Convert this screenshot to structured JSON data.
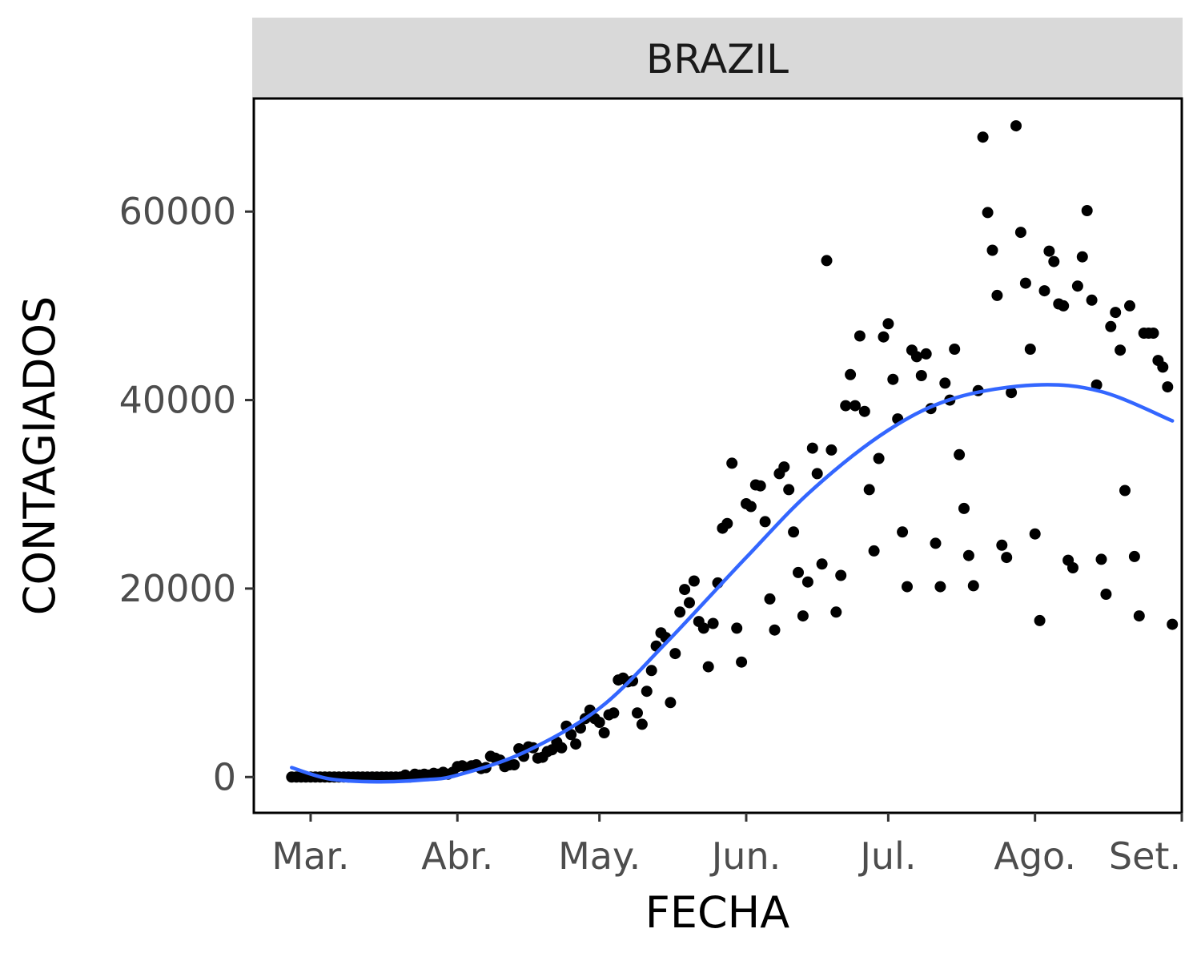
{
  "chart_data": {
    "type": "scatter",
    "facet_label": "BRAZIL",
    "xlabel": "FECHA",
    "ylabel": "CONTAGIADOS",
    "x_tick_labels": [
      "Mar.",
      "Abr.",
      "May.",
      "Jun.",
      "Jul.",
      "Ago.",
      "Set."
    ],
    "x_tick_dates": [
      "2020-03-01",
      "2020-04-01",
      "2020-05-01",
      "2020-06-01",
      "2020-07-01",
      "2020-08-01",
      "2020-09-01"
    ],
    "y_ticks": [
      0,
      20000,
      40000,
      60000
    ],
    "y_tick_labels": [
      "0",
      "20000",
      "40000",
      "60000"
    ],
    "xlim": [
      "2020-02-18",
      "2020-09-01"
    ],
    "ylim": [
      -3800,
      72000
    ],
    "grid": false,
    "legend": "none",
    "colors": {
      "points": "#000000",
      "smooth": "#3366FF",
      "strip": "#D9D9D9"
    },
    "points": [
      [
        "2020-02-26",
        0
      ],
      [
        "2020-02-27",
        0
      ],
      [
        "2020-02-28",
        0
      ],
      [
        "2020-02-29",
        0
      ],
      [
        "2020-03-01",
        0
      ],
      [
        "2020-03-02",
        0
      ],
      [
        "2020-03-03",
        0
      ],
      [
        "2020-03-04",
        0
      ],
      [
        "2020-03-05",
        0
      ],
      [
        "2020-03-06",
        0
      ],
      [
        "2020-03-07",
        0
      ],
      [
        "2020-03-08",
        0
      ],
      [
        "2020-03-09",
        0
      ],
      [
        "2020-03-10",
        0
      ],
      [
        "2020-03-11",
        0
      ],
      [
        "2020-03-12",
        0
      ],
      [
        "2020-03-13",
        0
      ],
      [
        "2020-03-14",
        0
      ],
      [
        "2020-03-15",
        0
      ],
      [
        "2020-03-16",
        0
      ],
      [
        "2020-03-17",
        0
      ],
      [
        "2020-03-18",
        0
      ],
      [
        "2020-03-19",
        0
      ],
      [
        "2020-03-20",
        0
      ],
      [
        "2020-03-21",
        200
      ],
      [
        "2020-03-22",
        0
      ],
      [
        "2020-03-23",
        300
      ],
      [
        "2020-03-24",
        200
      ],
      [
        "2020-03-25",
        300
      ],
      [
        "2020-03-26",
        200
      ],
      [
        "2020-03-27",
        400
      ],
      [
        "2020-03-28",
        300
      ],
      [
        "2020-03-29",
        500
      ],
      [
        "2020-03-30",
        300
      ],
      [
        "2020-03-31",
        500
      ],
      [
        "2020-04-01",
        1100
      ],
      [
        "2020-04-02",
        1200
      ],
      [
        "2020-04-03",
        1000
      ],
      [
        "2020-04-04",
        1200
      ],
      [
        "2020-04-05",
        1300
      ],
      [
        "2020-04-06",
        900
      ],
      [
        "2020-04-07",
        1000
      ],
      [
        "2020-04-08",
        2200
      ],
      [
        "2020-04-09",
        2000
      ],
      [
        "2020-04-10",
        1800
      ],
      [
        "2020-04-11",
        1100
      ],
      [
        "2020-04-12",
        1300
      ],
      [
        "2020-04-13",
        1300
      ],
      [
        "2020-04-14",
        3000
      ],
      [
        "2020-04-15",
        2200
      ],
      [
        "2020-04-16",
        3200
      ],
      [
        "2020-04-17",
        3100
      ],
      [
        "2020-04-18",
        2000
      ],
      [
        "2020-04-19",
        2100
      ],
      [
        "2020-04-20",
        2700
      ],
      [
        "2020-04-21",
        2900
      ],
      [
        "2020-04-22",
        3700
      ],
      [
        "2020-04-23",
        3100
      ],
      [
        "2020-04-24",
        5400
      ],
      [
        "2020-04-25",
        4500
      ],
      [
        "2020-04-26",
        3500
      ],
      [
        "2020-04-27",
        5200
      ],
      [
        "2020-04-28",
        6200
      ],
      [
        "2020-04-29",
        7100
      ],
      [
        "2020-04-30",
        6200
      ],
      [
        "2020-05-01",
        5800
      ],
      [
        "2020-05-02",
        4700
      ],
      [
        "2020-05-03",
        6600
      ],
      [
        "2020-05-04",
        6800
      ],
      [
        "2020-05-05",
        10300
      ],
      [
        "2020-05-06",
        10500
      ],
      [
        "2020-05-07",
        10100
      ],
      [
        "2020-05-08",
        10200
      ],
      [
        "2020-05-09",
        6800
      ],
      [
        "2020-05-10",
        5600
      ],
      [
        "2020-05-11",
        9100
      ],
      [
        "2020-05-12",
        11300
      ],
      [
        "2020-05-13",
        13900
      ],
      [
        "2020-05-14",
        15300
      ],
      [
        "2020-05-15",
        14800
      ],
      [
        "2020-05-16",
        7900
      ],
      [
        "2020-05-17",
        13100
      ],
      [
        "2020-05-18",
        17500
      ],
      [
        "2020-05-19",
        19900
      ],
      [
        "2020-05-20",
        18500
      ],
      [
        "2020-05-21",
        20800
      ],
      [
        "2020-05-22",
        16500
      ],
      [
        "2020-05-23",
        15800
      ],
      [
        "2020-05-24",
        11700
      ],
      [
        "2020-05-25",
        16300
      ],
      [
        "2020-05-26",
        20600
      ],
      [
        "2020-05-27",
        26400
      ],
      [
        "2020-05-28",
        26900
      ],
      [
        "2020-05-29",
        33300
      ],
      [
        "2020-05-30",
        15800
      ],
      [
        "2020-05-31",
        12200
      ],
      [
        "2020-06-01",
        29000
      ],
      [
        "2020-06-02",
        28700
      ],
      [
        "2020-06-03",
        31000
      ],
      [
        "2020-06-04",
        30900
      ],
      [
        "2020-06-05",
        27100
      ],
      [
        "2020-06-06",
        18900
      ],
      [
        "2020-06-07",
        15600
      ],
      [
        "2020-06-08",
        32200
      ],
      [
        "2020-06-09",
        32900
      ],
      [
        "2020-06-10",
        30500
      ],
      [
        "2020-06-11",
        26000
      ],
      [
        "2020-06-12",
        21700
      ],
      [
        "2020-06-13",
        17100
      ],
      [
        "2020-06-14",
        20700
      ],
      [
        "2020-06-15",
        34900
      ],
      [
        "2020-06-16",
        32200
      ],
      [
        "2020-06-17",
        22600
      ],
      [
        "2020-06-18",
        54800
      ],
      [
        "2020-06-19",
        34700
      ],
      [
        "2020-06-20",
        17500
      ],
      [
        "2020-06-21",
        21400
      ],
      [
        "2020-06-22",
        39400
      ],
      [
        "2020-06-23",
        42700
      ],
      [
        "2020-06-24",
        39400
      ],
      [
        "2020-06-25",
        46800
      ],
      [
        "2020-06-26",
        38800
      ],
      [
        "2020-06-27",
        30500
      ],
      [
        "2020-06-28",
        24000
      ],
      [
        "2020-06-29",
        33800
      ],
      [
        "2020-06-30",
        46700
      ],
      [
        "2020-07-01",
        48100
      ],
      [
        "2020-07-02",
        42200
      ],
      [
        "2020-07-03",
        38000
      ],
      [
        "2020-07-04",
        26000
      ],
      [
        "2020-07-05",
        20200
      ],
      [
        "2020-07-06",
        45300
      ],
      [
        "2020-07-07",
        44600
      ],
      [
        "2020-07-08",
        42600
      ],
      [
        "2020-07-09",
        44900
      ],
      [
        "2020-07-10",
        39100
      ],
      [
        "2020-07-11",
        24800
      ],
      [
        "2020-07-12",
        20200
      ],
      [
        "2020-07-13",
        41800
      ],
      [
        "2020-07-14",
        40000
      ],
      [
        "2020-07-15",
        45400
      ],
      [
        "2020-07-16",
        34200
      ],
      [
        "2020-07-17",
        28500
      ],
      [
        "2020-07-18",
        23500
      ],
      [
        "2020-07-19",
        20300
      ],
      [
        "2020-07-20",
        41000
      ],
      [
        "2020-07-21",
        67900
      ],
      [
        "2020-07-22",
        59900
      ],
      [
        "2020-07-23",
        55900
      ],
      [
        "2020-07-24",
        51100
      ],
      [
        "2020-07-25",
        24600
      ],
      [
        "2020-07-26",
        23300
      ],
      [
        "2020-07-27",
        40800
      ],
      [
        "2020-07-28",
        69100
      ],
      [
        "2020-07-29",
        57800
      ],
      [
        "2020-07-30",
        52400
      ],
      [
        "2020-07-31",
        45400
      ],
      [
        "2020-08-01",
        25800
      ],
      [
        "2020-08-02",
        16600
      ],
      [
        "2020-08-03",
        51600
      ],
      [
        "2020-08-04",
        55800
      ],
      [
        "2020-08-05",
        54700
      ],
      [
        "2020-08-06",
        50200
      ],
      [
        "2020-08-07",
        50000
      ],
      [
        "2020-08-08",
        23000
      ],
      [
        "2020-08-09",
        22200
      ],
      [
        "2020-08-10",
        52100
      ],
      [
        "2020-08-11",
        55200
      ],
      [
        "2020-08-12",
        60100
      ],
      [
        "2020-08-13",
        50600
      ],
      [
        "2020-08-14",
        41600
      ],
      [
        "2020-08-15",
        23100
      ],
      [
        "2020-08-16",
        19400
      ],
      [
        "2020-08-17",
        47800
      ],
      [
        "2020-08-18",
        49300
      ],
      [
        "2020-08-19",
        45300
      ],
      [
        "2020-08-20",
        30400
      ],
      [
        "2020-08-21",
        50000
      ],
      [
        "2020-08-22",
        23400
      ],
      [
        "2020-08-23",
        17100
      ],
      [
        "2020-08-24",
        47100
      ],
      [
        "2020-08-25",
        47100
      ],
      [
        "2020-08-26",
        47100
      ],
      [
        "2020-08-27",
        44200
      ],
      [
        "2020-08-28",
        43500
      ],
      [
        "2020-08-29",
        41400
      ],
      [
        "2020-08-30",
        16200
      ]
    ],
    "smooth_line": [
      [
        "2020-02-26",
        1000
      ],
      [
        "2020-03-05",
        -200
      ],
      [
        "2020-03-15",
        -500
      ],
      [
        "2020-03-25",
        -300
      ],
      [
        "2020-04-01",
        200
      ],
      [
        "2020-04-15",
        2600
      ],
      [
        "2020-05-01",
        7300
      ],
      [
        "2020-05-15",
        14200
      ],
      [
        "2020-06-01",
        23300
      ],
      [
        "2020-06-15",
        30500
      ],
      [
        "2020-07-01",
        36800
      ],
      [
        "2020-07-15",
        40200
      ],
      [
        "2020-08-01",
        41600
      ],
      [
        "2020-08-15",
        40900
      ],
      [
        "2020-08-30",
        37800
      ]
    ]
  }
}
